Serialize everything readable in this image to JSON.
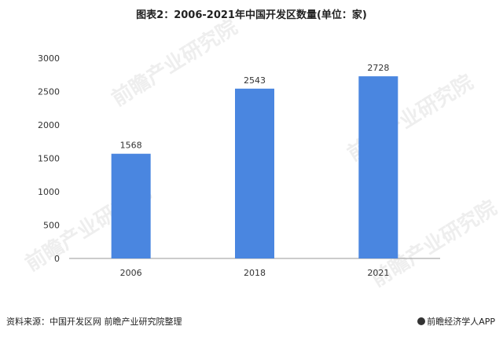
{
  "title": "图表2：2006-2021年中国开发区数量(单位：家)",
  "source": "资料来源：中国开发区网 前瞻产业研究院整理",
  "brand": "前瞻经济学人APP",
  "watermark": "前瞻产业研究院",
  "colors": {
    "bar": "#4a86e0",
    "axis": "#999999",
    "text": "#333333"
  },
  "chart_data": {
    "type": "bar",
    "title": "图表2：2006-2021年中国开发区数量(单位：家)",
    "categories": [
      "2006",
      "2018",
      "2021"
    ],
    "values": [
      1568,
      2543,
      2728
    ],
    "ylim": [
      0,
      3000
    ],
    "yticks": [
      0,
      500,
      1000,
      1500,
      2000,
      2500,
      3000
    ],
    "data_labels": true,
    "grid": false,
    "legend": "none"
  }
}
